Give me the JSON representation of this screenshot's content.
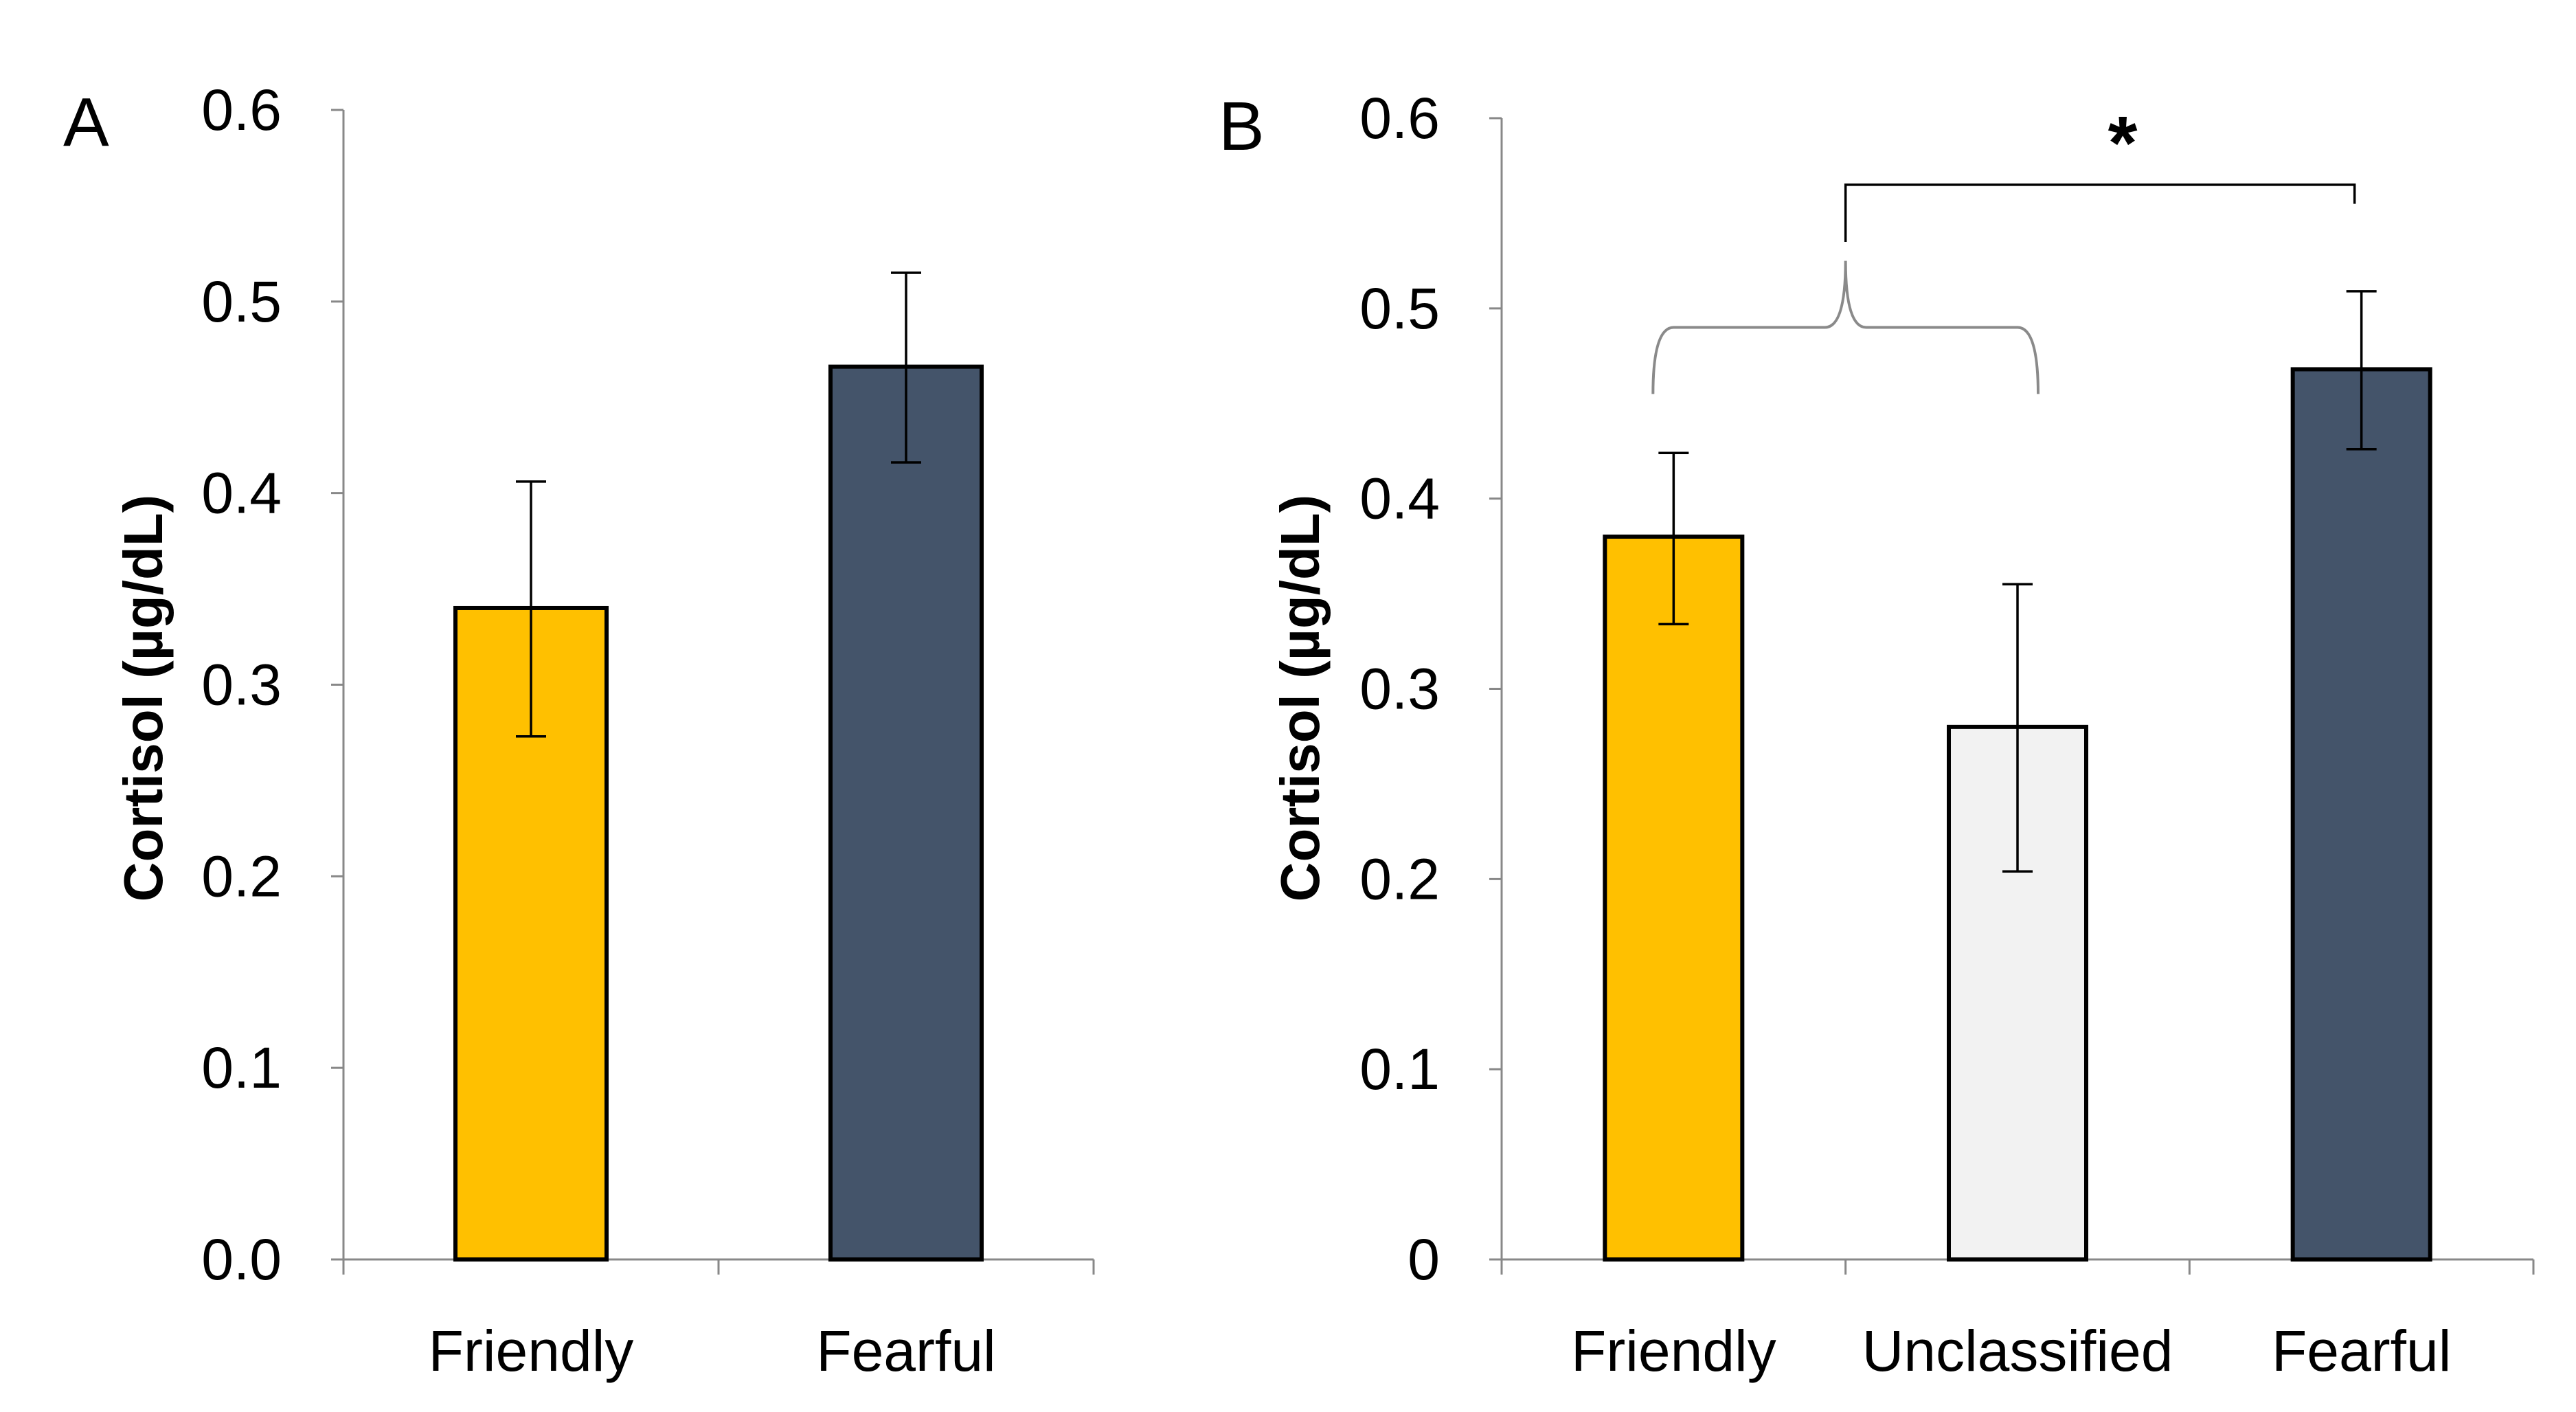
{
  "chart_data": [
    {
      "panel_label": "A",
      "type": "bar",
      "ylabel": "Cortisol (µg/dL)",
      "categories": [
        "Friendly",
        "Fearful"
      ],
      "values": [
        0.34,
        0.466
      ],
      "error_low": [
        0.273,
        0.416
      ],
      "error_high": [
        0.406,
        0.515
      ],
      "colors": [
        "#FFC000",
        "#44546A"
      ],
      "ylim": [
        0,
        0.6
      ],
      "yticks": [
        0,
        0.1,
        0.2,
        0.3,
        0.4,
        0.5,
        0.6
      ],
      "ytick_labels": [
        "0.0",
        "0.1",
        "0.2",
        "0.3",
        "0.4",
        "0.5",
        "0.6"
      ],
      "grid": false
    },
    {
      "panel_label": "B",
      "type": "bar",
      "ylabel": "Cortisol (µg/dL)",
      "categories": [
        "Friendly",
        "Unclassified",
        "Fearful"
      ],
      "values": [
        0.38,
        0.28,
        0.468
      ],
      "error_low": [
        0.334,
        0.204,
        0.426
      ],
      "error_high": [
        0.424,
        0.355,
        0.509
      ],
      "colors": [
        "#FFC000",
        "#F2F2F2",
        "#44546A"
      ],
      "ylim": [
        0,
        0.6
      ],
      "yticks": [
        0,
        0.1,
        0.2,
        0.3,
        0.4,
        0.5,
        0.6
      ],
      "ytick_labels": [
        "0",
        "0.1",
        "0.2",
        "0.3",
        "0.4",
        "0.5",
        "0.6"
      ],
      "grid": false,
      "annotations": [
        {
          "type": "significance",
          "text": "*",
          "group_a": [
            "Friendly",
            "Unclassified"
          ],
          "group_b": [
            "Fearful"
          ]
        }
      ]
    }
  ]
}
